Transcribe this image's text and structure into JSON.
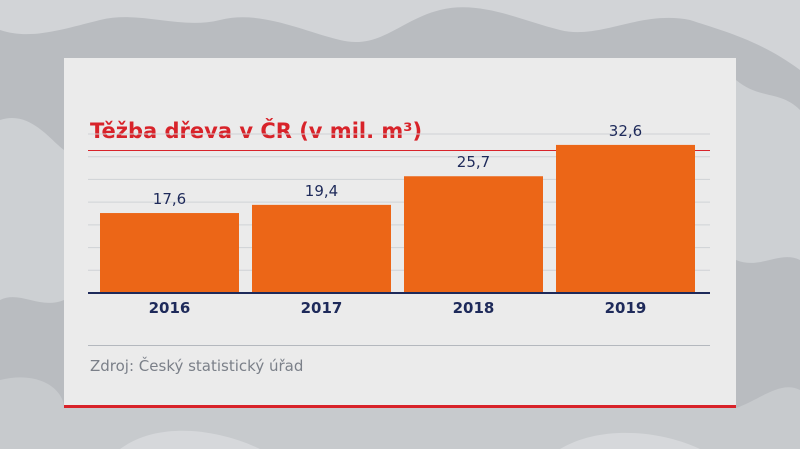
{
  "title": "Těžba dřeva v ČR (v mil. m³)",
  "source": "Zdroj: Český statistický úřad",
  "colors": {
    "accent": "#d8232a",
    "bar": "#ec6617",
    "axis": "#1e2a5a",
    "label": "#1e2a5a",
    "source": "#7b8089"
  },
  "chart_data": {
    "type": "bar",
    "title": "Těžba dřeva v ČR (v mil. m³)",
    "categories": [
      "2016",
      "2017",
      "2018",
      "2019"
    ],
    "values": [
      17.6,
      19.4,
      25.7,
      32.6
    ],
    "value_labels": [
      "17,6",
      "19,4",
      "25,7",
      "32,6"
    ],
    "xlabel": "",
    "ylabel": "",
    "ylim": [
      0,
      35
    ],
    "grid": true,
    "legend": "none"
  }
}
